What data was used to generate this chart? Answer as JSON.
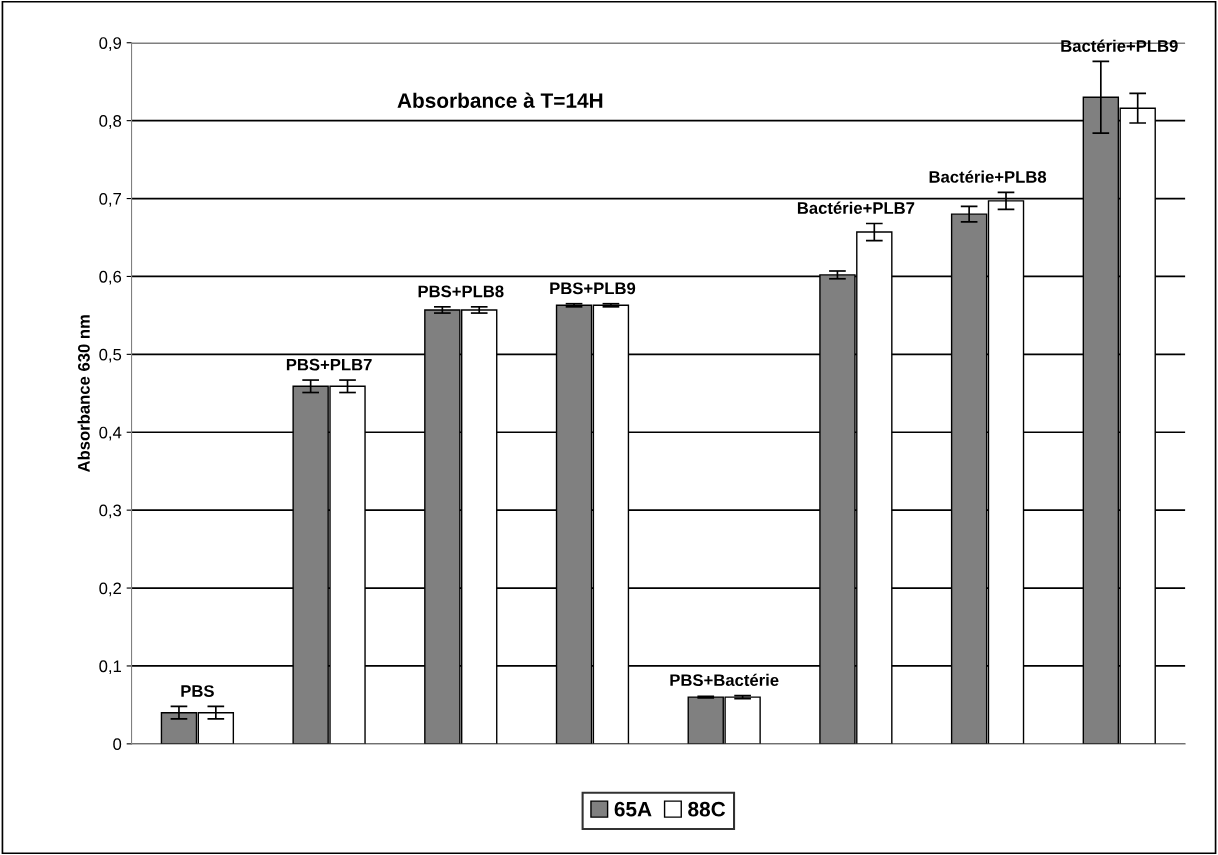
{
  "chart_data": {
    "type": "bar",
    "title": "Absorbance à T=14H",
    "ylabel": "Absorbance 630 nm",
    "categories": [
      "PBS",
      "PBS+PLB7",
      "PBS+PLB8",
      "PBS+PLB9",
      "PBS+Bactérie",
      "Bactérie+PLB7",
      "Bactérie+PLB8",
      "Bactérie+PLB9"
    ],
    "series": [
      {
        "name": "65A",
        "color": "#808080",
        "values": [
          0.04,
          0.459,
          0.557,
          0.563,
          0.06,
          0.602,
          0.68,
          0.83
        ],
        "errors": [
          0.008,
          0.008,
          0.004,
          0.002,
          0.001,
          0.005,
          0.01,
          0.046
        ]
      },
      {
        "name": "88C",
        "color": "#ffffff",
        "values": [
          0.04,
          0.459,
          0.557,
          0.563,
          0.06,
          0.657,
          0.697,
          0.816
        ],
        "errors": [
          0.008,
          0.008,
          0.004,
          0.002,
          0.002,
          0.011,
          0.011,
          0.019
        ]
      }
    ],
    "ylim": [
      0,
      0.9
    ],
    "yticks": [
      {
        "value": 0,
        "label": "0"
      },
      {
        "value": 0.1,
        "label": "0,1"
      },
      {
        "value": 0.2,
        "label": "0,2"
      },
      {
        "value": 0.3,
        "label": "0,3"
      },
      {
        "value": 0.4,
        "label": "0,4"
      },
      {
        "value": 0.5,
        "label": "0,5"
      },
      {
        "value": 0.6,
        "label": "0,6"
      },
      {
        "value": 0.7,
        "label": "0,7"
      },
      {
        "value": 0.8,
        "label": "0,8"
      },
      {
        "value": 0.9,
        "label": "0,9"
      }
    ],
    "grid": "y",
    "legend": "bottom"
  }
}
